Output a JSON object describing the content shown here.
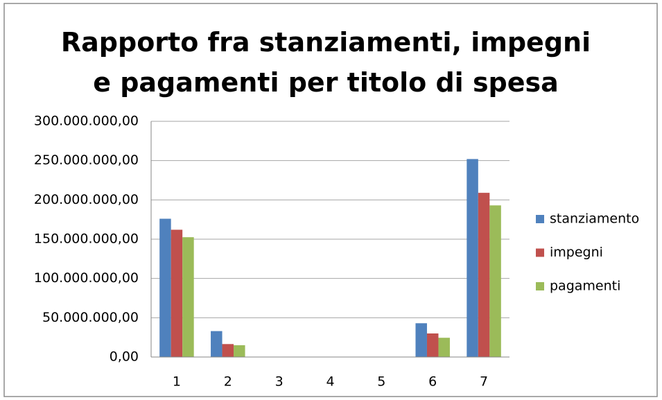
{
  "chart_data": {
    "type": "bar",
    "title": "Rapporto fra stanziamenti, impegni e pagamenti per titolo di spesa",
    "categories": [
      "1",
      "2",
      "3",
      "4",
      "5",
      "6",
      "7"
    ],
    "series": [
      {
        "name": "stanziamento",
        "color": "#4f81bd",
        "values": [
          176000000,
          33000000,
          0,
          0,
          0,
          43000000,
          252000000
        ]
      },
      {
        "name": "impegni",
        "color": "#c0504d",
        "values": [
          162000000,
          16500000,
          0,
          0,
          0,
          30000000,
          209000000
        ]
      },
      {
        "name": "pagamenti",
        "color": "#9bbb59",
        "values": [
          152500000,
          15000000,
          0,
          0,
          0,
          24500000,
          193000000
        ]
      }
    ],
    "ylim": [
      0,
      300000000
    ],
    "yticks": [
      {
        "value": 0,
        "label": "0,00"
      },
      {
        "value": 50000000,
        "label": "50.000.000,00"
      },
      {
        "value": 100000000,
        "label": "100.000.000,00"
      },
      {
        "value": 150000000,
        "label": "150.000.000,00"
      },
      {
        "value": 200000000,
        "label": "200.000.000,00"
      },
      {
        "value": 250000000,
        "label": "250.000.000,00"
      },
      {
        "value": 300000000,
        "label": "300.000.000,00"
      }
    ],
    "grid": true,
    "legend": "right"
  }
}
